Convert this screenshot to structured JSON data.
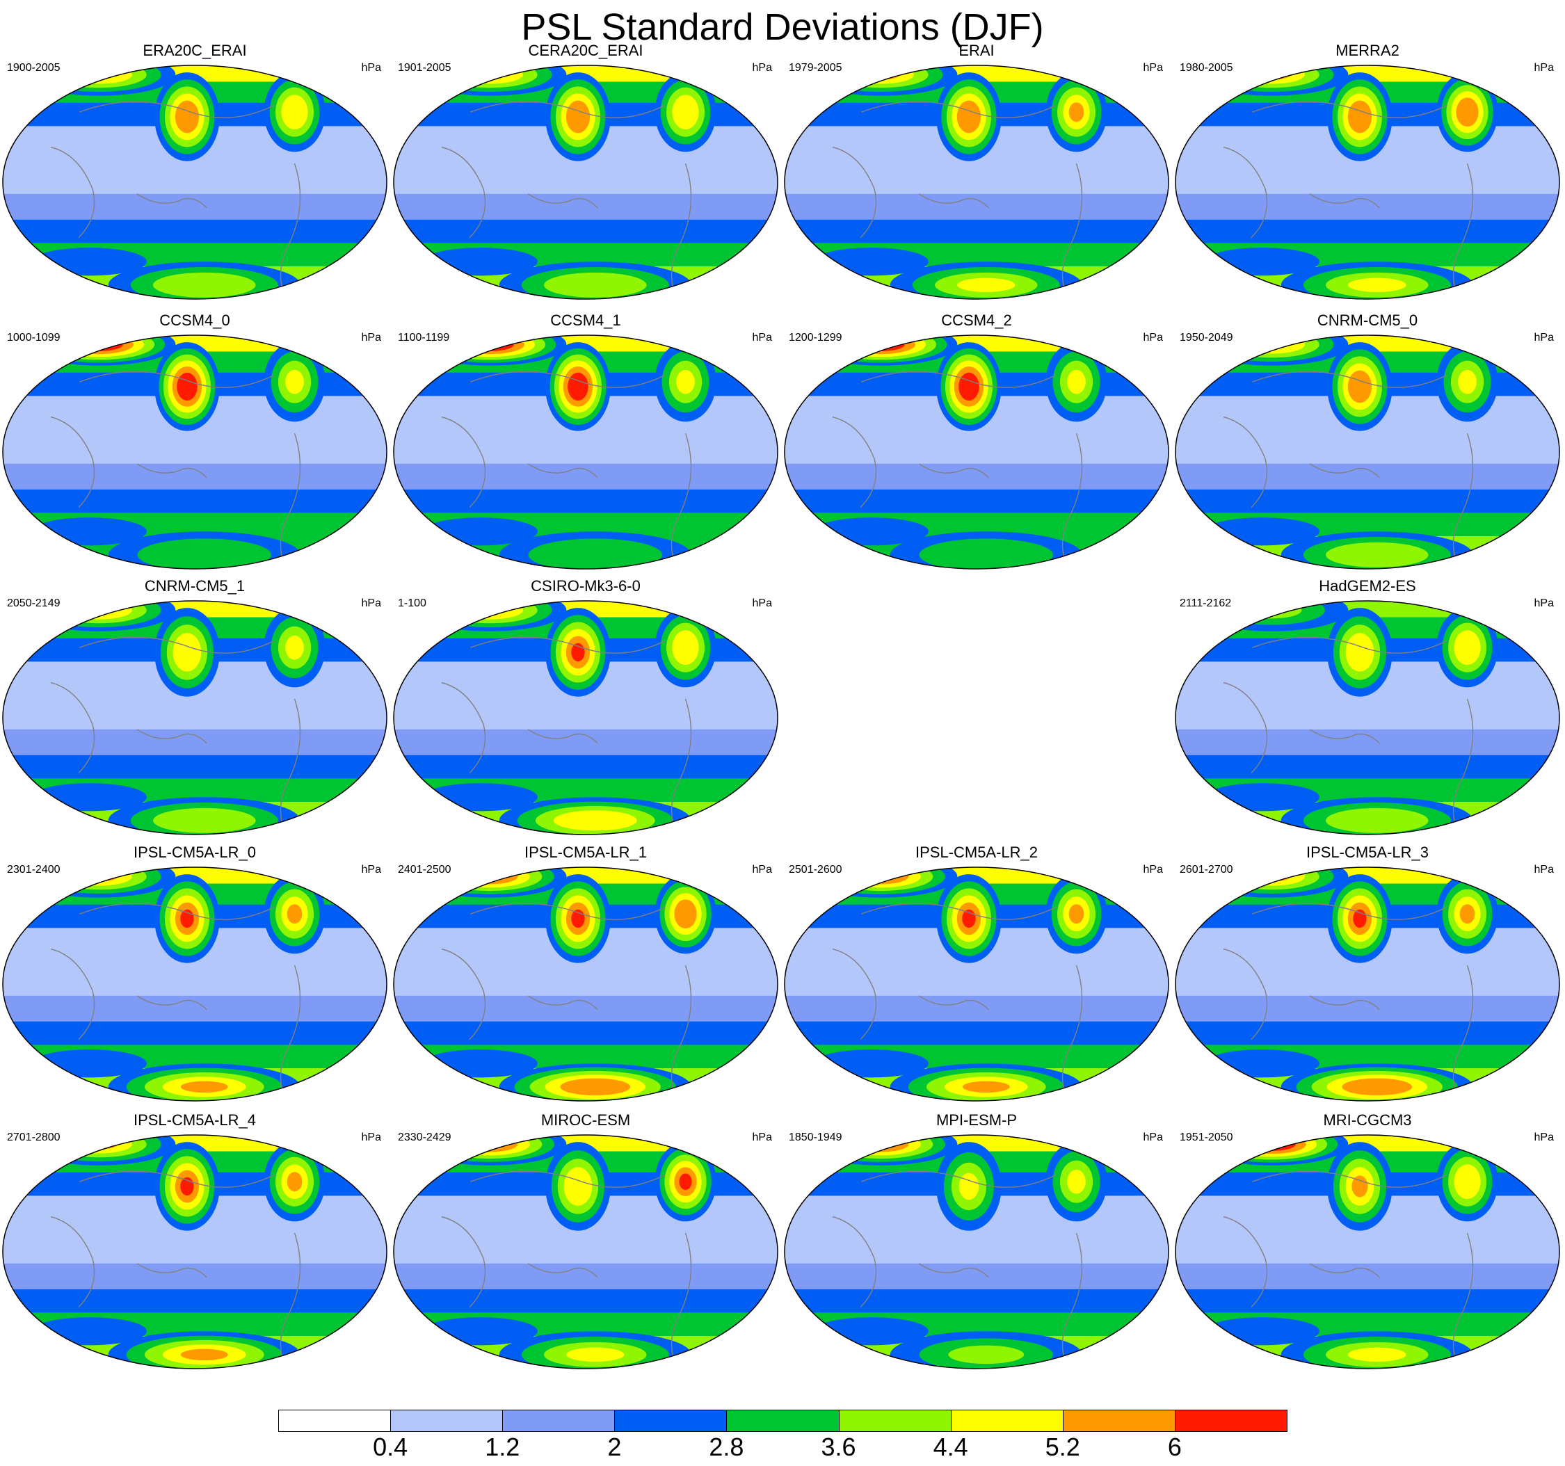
{
  "figure": {
    "title": "PSL Standard Deviations (DJF)"
  },
  "panels": [
    {
      "title": "ERA20C_ERAI",
      "period": "1900-2005",
      "units": "hPa",
      "profile": {
        "npac": 5.6,
        "nat": 4.8,
        "arc": 5.0,
        "sh": 4.2,
        "shband": 2.6,
        "trop": 1.0
      }
    },
    {
      "title": "CERA20C_ERAI",
      "period": "1901-2005",
      "units": "hPa",
      "profile": {
        "npac": 5.6,
        "nat": 4.8,
        "arc": 5.0,
        "sh": 4.2,
        "shband": 2.6,
        "trop": 1.0
      }
    },
    {
      "title": "ERAI",
      "period": "1979-2005",
      "units": "hPa",
      "profile": {
        "npac": 5.8,
        "nat": 5.4,
        "arc": 5.4,
        "sh": 4.4,
        "shband": 2.6,
        "trop": 1.0
      }
    },
    {
      "title": "MERRA2",
      "period": "1980-2005",
      "units": "hPa",
      "profile": {
        "npac": 5.8,
        "nat": 5.6,
        "arc": 5.4,
        "sh": 4.4,
        "shband": 2.6,
        "trop": 1.0
      }
    },
    {
      "title": "CCSM4_0",
      "period": "1000-1099",
      "units": "hPa",
      "profile": {
        "npac": 6.6,
        "nat": 4.6,
        "arc": 6.4,
        "sh": 3.4,
        "shband": 2.6,
        "trop": 0.9
      }
    },
    {
      "title": "CCSM4_1",
      "period": "1100-1199",
      "units": "hPa",
      "profile": {
        "npac": 6.6,
        "nat": 4.6,
        "arc": 6.4,
        "sh": 3.4,
        "shband": 2.6,
        "trop": 0.9
      }
    },
    {
      "title": "CCSM4_2",
      "period": "1200-1299",
      "units": "hPa",
      "profile": {
        "npac": 6.6,
        "nat": 4.6,
        "arc": 6.4,
        "sh": 3.4,
        "shband": 2.6,
        "trop": 0.9
      }
    },
    {
      "title": "CNRM-CM5_0",
      "period": "1950-2049",
      "units": "hPa",
      "profile": {
        "npac": 5.8,
        "nat": 4.6,
        "arc": 4.8,
        "sh": 4.0,
        "shband": 2.6,
        "trop": 1.0
      }
    },
    {
      "title": "CNRM-CM5_1",
      "period": "2050-2149",
      "units": "hPa",
      "profile": {
        "npac": 5.0,
        "nat": 4.6,
        "arc": 4.8,
        "sh": 4.2,
        "shband": 2.6,
        "trop": 1.0
      }
    },
    {
      "title": "CSIRO-Mk3-6-0",
      "period": "1-100",
      "units": "hPa",
      "profile": {
        "npac": 6.0,
        "nat": 5.0,
        "arc": 4.8,
        "sh": 4.8,
        "shband": 2.6,
        "trop": 1.0
      }
    },
    {
      "title": "HadGEM2-ES",
      "period": "2111-2162",
      "units": "hPa",
      "profile": {
        "npac": 5.0,
        "nat": 4.8,
        "arc": 3.6,
        "sh": 4.0,
        "shband": 2.6,
        "trop": 0.9
      }
    },
    {
      "title": "IPSL-CM5A-LR_0",
      "period": "2301-2400",
      "units": "hPa",
      "profile": {
        "npac": 6.2,
        "nat": 5.2,
        "arc": 5.4,
        "sh": 5.4,
        "shband": 2.6,
        "trop": 0.9
      }
    },
    {
      "title": "IPSL-CM5A-LR_1",
      "period": "2401-2500",
      "units": "hPa",
      "profile": {
        "npac": 6.3,
        "nat": 5.8,
        "arc": 5.6,
        "sh": 5.6,
        "shband": 2.6,
        "trop": 0.9
      }
    },
    {
      "title": "IPSL-CM5A-LR_2",
      "period": "2501-2600",
      "units": "hPa",
      "profile": {
        "npac": 6.2,
        "nat": 5.4,
        "arc": 6.2,
        "sh": 5.2,
        "shband": 2.6,
        "trop": 0.9
      }
    },
    {
      "title": "IPSL-CM5A-LR_3",
      "period": "2601-2700",
      "units": "hPa",
      "profile": {
        "npac": 6.2,
        "nat": 5.2,
        "arc": 5.4,
        "sh": 5.6,
        "shband": 2.6,
        "trop": 0.9
      }
    },
    {
      "title": "IPSL-CM5A-LR_4",
      "period": "2701-2800",
      "units": "hPa",
      "profile": {
        "npac": 6.2,
        "nat": 5.2,
        "arc": 5.4,
        "sh": 5.2,
        "shband": 2.6,
        "trop": 0.9
      }
    },
    {
      "title": "MIROC-ESM",
      "period": "2330-2429",
      "units": "hPa",
      "profile": {
        "npac": 4.8,
        "nat": 6.0,
        "arc": 6.2,
        "sh": 4.4,
        "shband": 2.6,
        "trop": 0.5
      }
    },
    {
      "title": "MPI-ESM-P",
      "period": "1850-1949",
      "units": "hPa",
      "profile": {
        "npac": 4.6,
        "nat": 4.6,
        "arc": 6.2,
        "sh": 3.8,
        "shband": 2.6,
        "trop": 0.6
      }
    },
    {
      "title": "MRI-CGCM3",
      "period": "1951-2050",
      "units": "hPa",
      "profile": {
        "npac": 5.2,
        "nat": 4.8,
        "arc": 6.6,
        "sh": 4.6,
        "shband": 2.6,
        "trop": 0.8
      }
    }
  ],
  "colorbar": {
    "levels": [
      "0.4",
      "1.2",
      "2",
      "2.8",
      "3.6",
      "4.4",
      "5.2",
      "6"
    ],
    "colors": [
      "#ffffff",
      "#b4c7fa",
      "#7f9bf5",
      "#005ef5",
      "#00c533",
      "#8ff500",
      "#ffff00",
      "#ff9900",
      "#ff1a00"
    ]
  }
}
